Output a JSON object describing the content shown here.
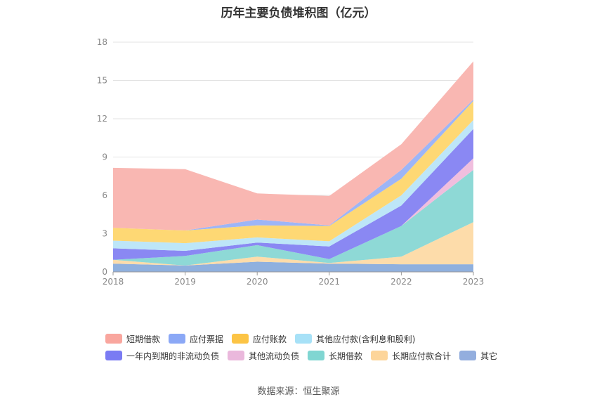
{
  "chart_data": {
    "type": "area",
    "stacked": true,
    "title": "历年主要负债堆积图（亿元）",
    "x": [
      "2018",
      "2019",
      "2020",
      "2021",
      "2022",
      "2023"
    ],
    "y_ticks": [
      "0",
      "3",
      "6",
      "9",
      "12",
      "15",
      "18"
    ],
    "ylim": [
      0,
      18
    ],
    "grid": true,
    "legend_position": "bottom",
    "series": [
      {
        "name": "其它",
        "color": "#8fb0de",
        "values": [
          0.65,
          0.5,
          0.8,
          0.65,
          0.6,
          0.6
        ]
      },
      {
        "name": "长期应付款合计",
        "color": "#fddcaa",
        "values": [
          0.3,
          0.0,
          0.4,
          0.05,
          0.6,
          3.3
        ]
      },
      {
        "name": "长期借款",
        "color": "#8ed9d6",
        "values": [
          0.0,
          0.75,
          0.9,
          0.3,
          2.4,
          4.1
        ]
      },
      {
        "name": "其他流动负债",
        "color": "#f0bede",
        "values": [
          0.0,
          0.0,
          0.0,
          0.0,
          0.0,
          0.9
        ]
      },
      {
        "name": "一年内到期的非流动负债",
        "color": "#8a88f3",
        "values": [
          0.9,
          0.4,
          0.2,
          1.0,
          1.6,
          2.3
        ]
      },
      {
        "name": "其他应付款(含利息和股利)",
        "color": "#bde6f8",
        "values": [
          0.6,
          0.6,
          0.4,
          0.4,
          0.8,
          0.7
        ]
      },
      {
        "name": "应付账款",
        "color": "#fed874",
        "values": [
          1.0,
          1.0,
          0.95,
          1.2,
          1.3,
          1.5
        ]
      },
      {
        "name": "应付票据",
        "color": "#9db5f7",
        "values": [
          0.0,
          0.0,
          0.45,
          0.05,
          0.7,
          0.1
        ]
      },
      {
        "name": "短期借款",
        "color": "#f9b7b2",
        "values": [
          4.7,
          4.8,
          2.05,
          2.3,
          2.0,
          3.0
        ]
      }
    ],
    "legend_swatches": {
      "短期借款": "#f9a69e",
      "应付票据": "#8ba8f6",
      "应付账款": "#fcc445",
      "其他应付款(含利息和股利)": "#a7e1f7",
      "一年内到期的非流动负债": "#7a7bf3",
      "其他流动负债": "#eab8dc",
      "长期借款": "#80d6d2",
      "长期应付款合计": "#fdd59a",
      "其它": "#93aede"
    },
    "legend_order": [
      [
        "短期借款",
        "应付票据",
        "应付账款",
        "其他应付款(含利息和股利)"
      ],
      [
        "一年内到期的非流动负债",
        "其他流动负债",
        "长期借款",
        "长期应付款合计",
        "其它"
      ]
    ]
  },
  "source_text": "数据来源：恒生聚源"
}
